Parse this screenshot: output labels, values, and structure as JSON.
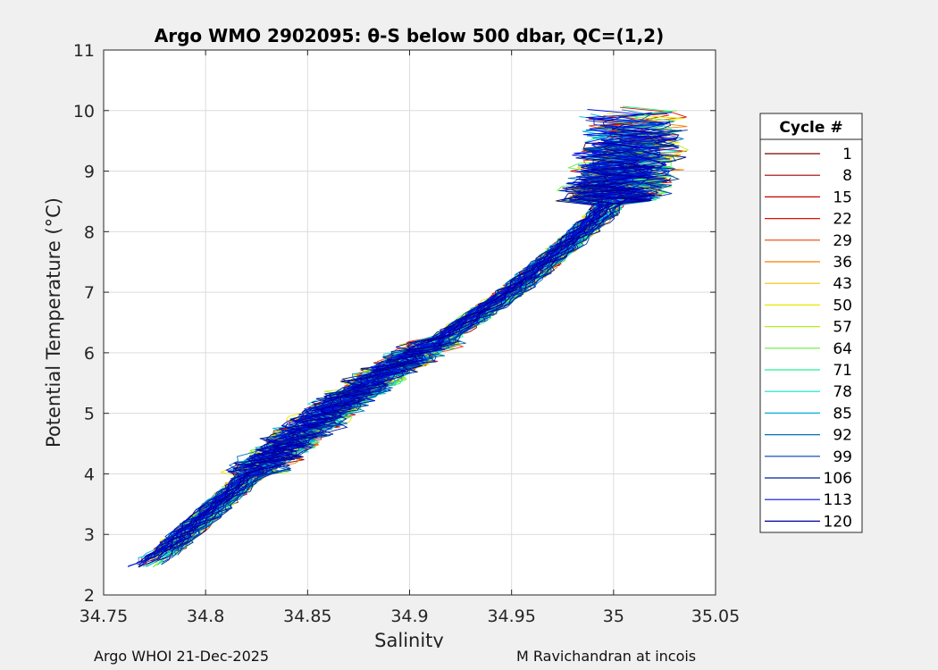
{
  "chart_data": {
    "type": "line",
    "title": "Argo WMO 2902095: θ-S below 500 dbar,  QC=(1,2)",
    "xlabel": "Salinity",
    "ylabel": "Potential Temperature (°C)",
    "xlim": [
      34.75,
      35.05
    ],
    "ylim": [
      2,
      11
    ],
    "xticks": [
      34.75,
      34.8,
      34.85,
      34.9,
      34.95,
      35.0,
      35.05
    ],
    "xtick_labels": [
      "34.75",
      "34.8",
      "34.85",
      "34.9",
      "34.95",
      "35",
      "35.05"
    ],
    "yticks": [
      2,
      3,
      4,
      5,
      6,
      7,
      8,
      9,
      10,
      11
    ],
    "ytick_labels": [
      "2",
      "3",
      "4",
      "5",
      "6",
      "7",
      "8",
      "9",
      "10",
      "11"
    ],
    "grid": true,
    "legend_title": "Cycle #",
    "legend_position": "right",
    "series": [
      {
        "name": "1",
        "color": "#7f0000"
      },
      {
        "name": "8",
        "color": "#a00000"
      },
      {
        "name": "15",
        "color": "#c80000"
      },
      {
        "name": "22",
        "color": "#e01000"
      },
      {
        "name": "29",
        "color": "#f04000"
      },
      {
        "name": "36",
        "color": "#f08000"
      },
      {
        "name": "43",
        "color": "#f0c000"
      },
      {
        "name": "50",
        "color": "#e8e800"
      },
      {
        "name": "57",
        "color": "#b0f020"
      },
      {
        "name": "64",
        "color": "#60f040"
      },
      {
        "name": "71",
        "color": "#20f090"
      },
      {
        "name": "78",
        "color": "#10e0d0"
      },
      {
        "name": "85",
        "color": "#00b0e0"
      },
      {
        "name": "92",
        "color": "#0070c0"
      },
      {
        "name": "99",
        "color": "#0040b0"
      },
      {
        "name": "106",
        "color": "#00209a"
      },
      {
        "name": "113",
        "color": "#0010e0"
      },
      {
        "name": "120",
        "color": "#0000a0"
      }
    ],
    "mean_profile": {
      "salinity": [
        34.768,
        34.78,
        34.8,
        34.83,
        34.86,
        34.89,
        34.92,
        34.95,
        34.975,
        34.995,
        35.005,
        35.01
      ],
      "temperature": [
        2.45,
        2.7,
        3.3,
        4.2,
        5.0,
        5.7,
        6.3,
        7.0,
        7.7,
        8.3,
        8.9,
        9.6
      ]
    }
  },
  "footer": {
    "left": "Argo WHOI 21-Dec-2025",
    "right": "M Ravichandran at incois"
  }
}
